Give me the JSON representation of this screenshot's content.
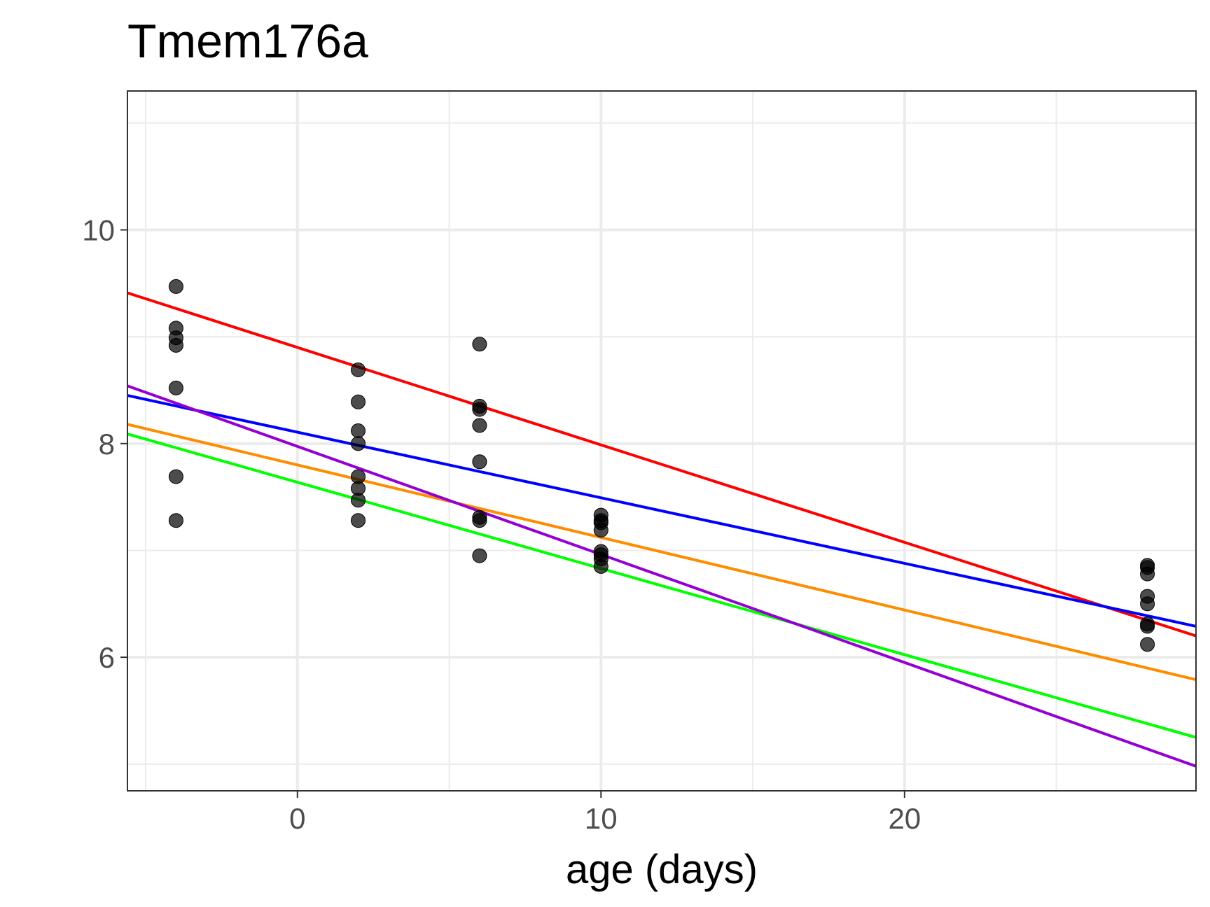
{
  "chart_data": {
    "type": "scatter",
    "title": "Tmem176a",
    "xlabel": "age (days)",
    "ylabel": "",
    "xlim": [
      -5.6,
      29.6
    ],
    "ylim": [
      4.75,
      11.3
    ],
    "x_ticks": [
      0,
      10,
      20
    ],
    "x_tick_labels": [
      "0",
      "10",
      "20"
    ],
    "x_minor": [
      -5,
      5,
      15,
      25
    ],
    "y_ticks": [
      6,
      8,
      10
    ],
    "y_tick_labels": [
      "6",
      "8",
      "10"
    ],
    "y_minor": [
      5,
      7,
      9,
      11
    ],
    "grid": true,
    "points": [
      {
        "x": -4,
        "y": 9.47
      },
      {
        "x": -4,
        "y": 9.08
      },
      {
        "x": -4,
        "y": 8.99
      },
      {
        "x": -4,
        "y": 8.92
      },
      {
        "x": -4,
        "y": 8.52
      },
      {
        "x": -4,
        "y": 7.69
      },
      {
        "x": -4,
        "y": 7.28
      },
      {
        "x": 2,
        "y": 8.69
      },
      {
        "x": 2,
        "y": 8.39
      },
      {
        "x": 2,
        "y": 8.12
      },
      {
        "x": 2,
        "y": 8.0
      },
      {
        "x": 2,
        "y": 7.69
      },
      {
        "x": 2,
        "y": 7.58
      },
      {
        "x": 2,
        "y": 7.47
      },
      {
        "x": 2,
        "y": 7.28
      },
      {
        "x": 6,
        "y": 8.93
      },
      {
        "x": 6,
        "y": 8.35
      },
      {
        "x": 6,
        "y": 8.32
      },
      {
        "x": 6,
        "y": 8.17
      },
      {
        "x": 6,
        "y": 7.83
      },
      {
        "x": 6,
        "y": 7.31
      },
      {
        "x": 6,
        "y": 7.28
      },
      {
        "x": 6,
        "y": 6.95
      },
      {
        "x": 10,
        "y": 7.33
      },
      {
        "x": 10,
        "y": 7.28
      },
      {
        "x": 10,
        "y": 7.26
      },
      {
        "x": 10,
        "y": 7.19
      },
      {
        "x": 10,
        "y": 6.99
      },
      {
        "x": 10,
        "y": 6.96
      },
      {
        "x": 10,
        "y": 6.92
      },
      {
        "x": 10,
        "y": 6.85
      },
      {
        "x": 28,
        "y": 6.86
      },
      {
        "x": 28,
        "y": 6.84
      },
      {
        "x": 28,
        "y": 6.78
      },
      {
        "x": 28,
        "y": 6.57
      },
      {
        "x": 28,
        "y": 6.5
      },
      {
        "x": 28,
        "y": 6.31
      },
      {
        "x": 28,
        "y": 6.29
      },
      {
        "x": 28,
        "y": 6.12
      }
    ],
    "series": [
      {
        "color": "#ff0000",
        "x": [
          -5.6,
          29.6
        ],
        "y": [
          9.41,
          6.2
        ]
      },
      {
        "color": "#0000ff",
        "x": [
          -5.6,
          29.6
        ],
        "y": [
          8.45,
          6.29
        ]
      },
      {
        "color": "#ff8c00",
        "x": [
          -5.6,
          29.6
        ],
        "y": [
          8.18,
          5.79
        ]
      },
      {
        "color": "#00ff00",
        "x": [
          -5.6,
          29.6
        ],
        "y": [
          8.09,
          5.25
        ]
      },
      {
        "color": "#9400d3",
        "x": [
          -5.6,
          29.6
        ],
        "y": [
          8.54,
          4.98
        ]
      }
    ]
  }
}
